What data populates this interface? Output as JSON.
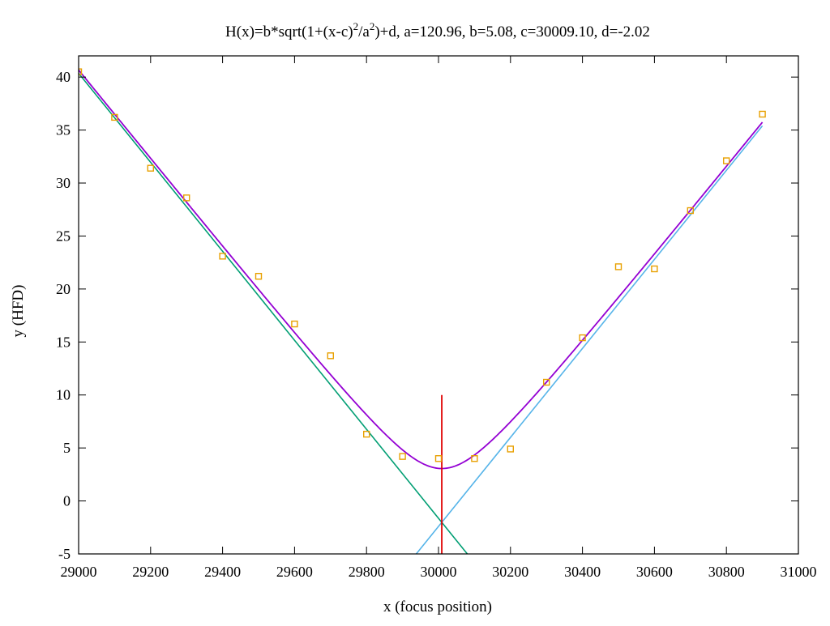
{
  "chart_data": {
    "type": "scatter",
    "title": {
      "prefix": "H(x)=b*sqrt(1+(x-c)",
      "sup1": "2",
      "middle": "/a",
      "sup2": "2",
      "suffix": ")+d, a=120.96, b=5.08, c=30009.10, d=-2.02"
    },
    "xlabel": "x (focus position)",
    "ylabel": "y (HFD)",
    "xlim": [
      29000,
      31000
    ],
    "ylim": [
      -5,
      42
    ],
    "xticks": [
      29000,
      29200,
      29400,
      29600,
      29800,
      30000,
      30200,
      30400,
      30600,
      30800,
      31000
    ],
    "yticks": [
      -5,
      0,
      5,
      10,
      15,
      20,
      25,
      30,
      35,
      40
    ],
    "xtick_labels": [
      "29000",
      "29200",
      "29400",
      "29600",
      "29800",
      "30000",
      "30200",
      "30400",
      "30600",
      "30800",
      "31000"
    ],
    "ytick_labels": [
      "-5",
      "0",
      "5",
      "10",
      "15",
      "20",
      "25",
      "30",
      "35",
      "40"
    ],
    "grid": false,
    "fit_params": {
      "a": 120.96,
      "b": 5.08,
      "c": 30009.1,
      "d": -2.02
    },
    "points": {
      "color": "#e8a000",
      "x": [
        29000,
        29100,
        29200,
        29300,
        29400,
        29500,
        29600,
        29700,
        29800,
        29900,
        30000,
        30100,
        30200,
        30300,
        30400,
        30500,
        30600,
        30700,
        30800,
        30900
      ],
      "y": [
        40.5,
        36.2,
        31.4,
        28.6,
        23.1,
        21.2,
        16.7,
        13.7,
        6.3,
        4.2,
        4.0,
        4.0,
        4.9,
        11.2,
        15.4,
        22.1,
        21.9,
        27.4,
        32.1,
        36.5
      ]
    },
    "series": [
      {
        "kind": "fit-curve",
        "color": "#9400d3",
        "x_range": [
          29000,
          30900
        ]
      },
      {
        "kind": "left-asymptote",
        "color": "#009e73",
        "x_range": [
          29000,
          30080
        ]
      },
      {
        "kind": "right-asymptote",
        "color": "#56b4e9",
        "x_range": [
          29930,
          30900
        ]
      },
      {
        "kind": "focus-marker",
        "color": "#e00000",
        "x": 30009.1,
        "y_range": [
          -5,
          10
        ]
      }
    ]
  }
}
